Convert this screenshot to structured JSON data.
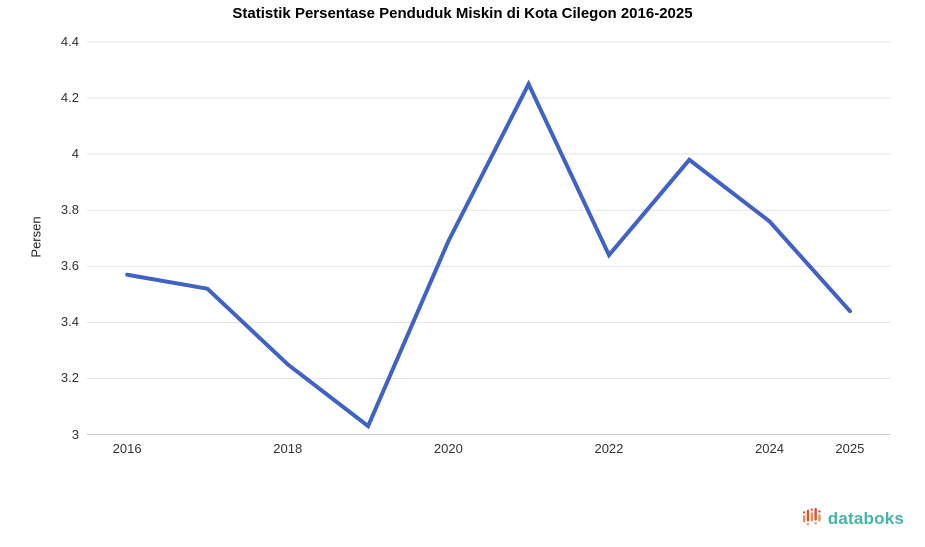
{
  "chart_data": {
    "type": "line",
    "title": "Statistik Persentase Penduduk Miskin di Kota Cilegon 2016-2025",
    "xlabel": "",
    "ylabel": "Persen",
    "x": [
      2016,
      2017,
      2018,
      2019,
      2020,
      2021,
      2022,
      2023,
      2024,
      2025
    ],
    "series": [
      {
        "name": "Persen",
        "values": [
          3.57,
          3.52,
          3.25,
          3.03,
          3.69,
          4.25,
          3.64,
          3.98,
          3.76,
          3.44
        ],
        "color": "#3f62c4"
      }
    ],
    "ylim": [
      3,
      4.4
    ],
    "y_ticks": [
      3,
      3.2,
      3.4,
      3.6,
      3.8,
      4,
      4.2,
      4.4
    ],
    "y_tick_labels": [
      "3",
      "3.2",
      "3.4",
      "3.6",
      "3.8",
      "4",
      "4.2",
      "4.4"
    ],
    "x_tick_years": [
      2016,
      2018,
      2020,
      2022,
      2024,
      2025
    ],
    "x_tick_labels": [
      "2016",
      "2018",
      "2020",
      "2022",
      "2024",
      "2025"
    ],
    "grid": true,
    "legend_position": "none",
    "gridline_color": "#e3e3e3",
    "baseline_color": "#c9c9c9"
  },
  "branding": {
    "logo_text": "databoks",
    "logo_text_color": "#45b4aa",
    "logo_icon": "databoks-bars-icon",
    "icon_color_red": "#e2502b",
    "icon_color_orange": "#ef8f4f"
  }
}
